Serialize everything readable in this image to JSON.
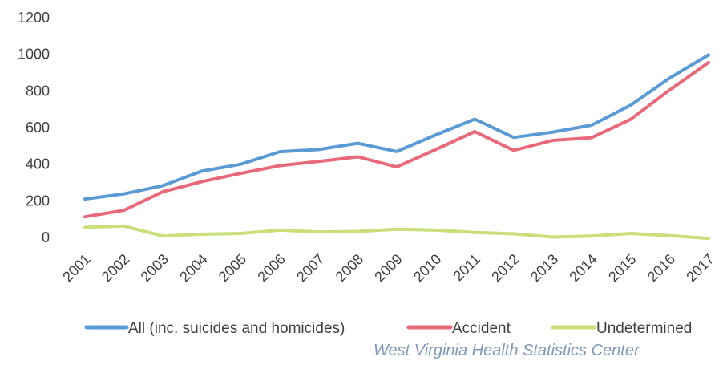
{
  "chart_data": {
    "type": "line",
    "x": [
      "2001",
      "2002",
      "2003",
      "2004",
      "2005",
      "2006",
      "2007",
      "2008",
      "2009",
      "2010",
      "2011",
      "2012",
      "2013",
      "2014",
      "2015",
      "2016",
      "2017"
    ],
    "series": [
      {
        "name": "All (inc. suicides and homicides)",
        "color": "#5b9bd5",
        "values": [
          210,
          238,
          283,
          362,
          400,
          468,
          480,
          514,
          469,
          560,
          646,
          546,
          575,
          613,
          722,
          870,
          997
        ]
      },
      {
        "name": "Accident",
        "color": "#e8697a",
        "values": [
          113,
          148,
          250,
          305,
          350,
          392,
          415,
          440,
          385,
          480,
          578,
          475,
          530,
          545,
          645,
          805,
          955
        ]
      },
      {
        "name": "Undetermined",
        "color": "#c9e07a",
        "values": [
          55,
          62,
          8,
          18,
          22,
          40,
          30,
          33,
          45,
          40,
          27,
          20,
          2,
          8,
          22,
          10,
          -5
        ]
      }
    ],
    "ylim": [
      0,
      1200
    ],
    "yticks": [
      0,
      200,
      400,
      600,
      800,
      1000,
      1200
    ],
    "grid": false,
    "legend": "bottom"
  },
  "source_note": "West Virginia Health Statistics Center"
}
